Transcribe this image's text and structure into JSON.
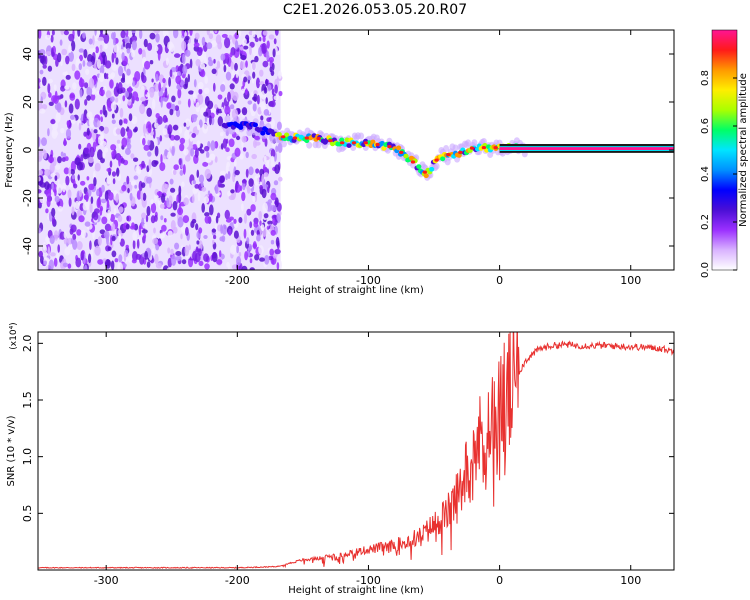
{
  "title": "C2E1.2026.053.05.20.R07",
  "colors": {
    "trace": "#e8312f",
    "frame": "#000000"
  },
  "colormap": [
    "#ffffff",
    "#d9b3ff",
    "#9b30ff",
    "#4b0fd6",
    "#0000ff",
    "#0091ff",
    "#00e5ff",
    "#00ff66",
    "#aaff00",
    "#ffee00",
    "#ff9900",
    "#ff1a1a",
    "#ff1493"
  ],
  "chart_data": [
    {
      "type": "heatmap",
      "title": "C2E1.2026.053.05.20.R07",
      "xlabel": "Height of straight line (km)",
      "ylabel": "Frequency (Hz)",
      "xlim": [
        -352,
        133
      ],
      "ylim": [
        -50,
        50
      ],
      "xticks": [
        -300,
        -200,
        -100,
        0,
        100
      ],
      "yticks": [
        -40,
        -20,
        0,
        20,
        40
      ],
      "colorbar": {
        "label": "Normalized spectral amplitude",
        "range": [
          0,
          1
        ],
        "ticks": [
          "0.0",
          "0.2",
          "0.4",
          "0.6",
          "0.8"
        ]
      },
      "noise_region_x": [
        -352,
        -167
      ],
      "signal_ridge": {
        "x": [
          -210,
          -190,
          -180,
          -170,
          -160,
          -150,
          -140,
          -130,
          -120,
          -110,
          -100,
          -90,
          -80,
          -70,
          -60,
          -55,
          -50,
          -45,
          -40,
          -30,
          -20,
          -10,
          0,
          133
        ],
        "freq_hz": [
          10,
          10,
          8,
          6,
          5,
          5,
          5,
          4,
          3,
          3,
          3,
          2,
          1,
          -3,
          -8,
          -10,
          -5,
          -3,
          -2,
          -1,
          1,
          1,
          1,
          1
        ]
      }
    },
    {
      "type": "line",
      "xlabel": "Height of straight line (km)",
      "ylabel": "SNR (10 * v/v)",
      "y_multiplier": "(x10⁴)",
      "xlim": [
        -352,
        133
      ],
      "ylim": [
        0,
        2.1
      ],
      "xticks": [
        -300,
        -200,
        -100,
        0,
        100
      ],
      "yticks": [
        0.5,
        1.0,
        1.5,
        2.0
      ],
      "ytick_labels": [
        "0.5",
        "1.0",
        "1.5",
        "2.0"
      ],
      "series": [
        {
          "x": [
            -352,
            -300,
            -250,
            -200,
            -170,
            -160,
            -150,
            -140,
            -120,
            -100,
            -80,
            -60,
            -50,
            -40,
            -30,
            -25,
            -20,
            -15,
            -10,
            -5,
            0,
            5,
            10,
            15,
            20,
            30,
            40,
            50,
            60,
            80,
            100,
            120,
            133
          ],
          "values": [
            0.02,
            0.02,
            0.02,
            0.02,
            0.03,
            0.06,
            0.09,
            0.1,
            0.14,
            0.18,
            0.22,
            0.3,
            0.4,
            0.5,
            0.7,
            0.9,
            1.1,
            1.15,
            1.25,
            1.3,
            1.4,
            1.5,
            1.6,
            1.75,
            1.85,
            1.95,
            1.98,
            1.99,
            1.98,
            1.98,
            1.97,
            1.96,
            1.93
          ]
        }
      ]
    }
  ]
}
